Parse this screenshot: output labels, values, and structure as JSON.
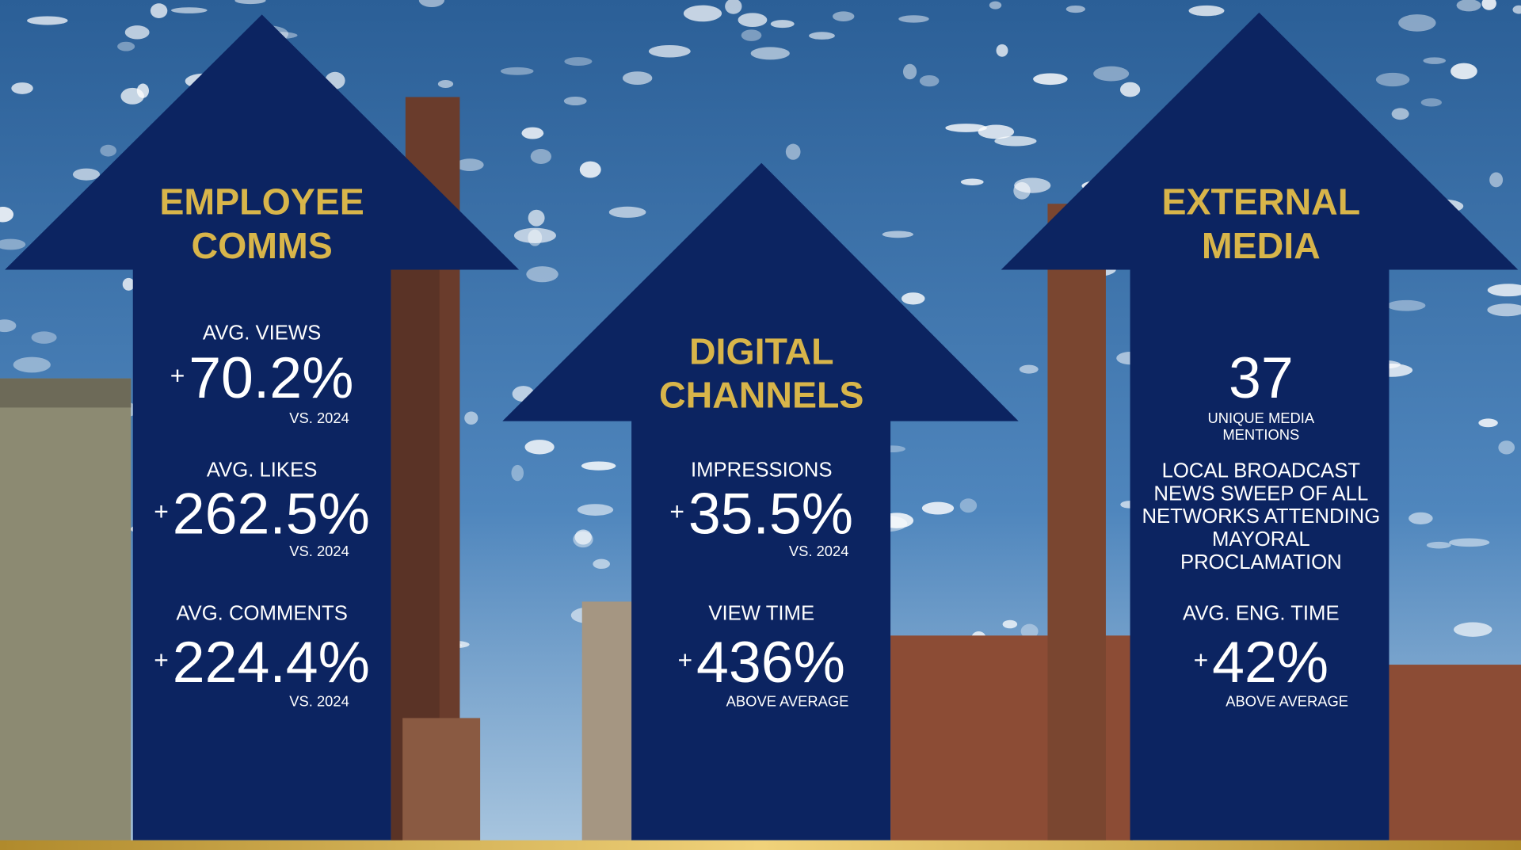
{
  "panels": [
    {
      "title": [
        "EMPLOYEE",
        "COMMS"
      ],
      "metrics": [
        {
          "label": "AVG. VIEWS",
          "sign": "+",
          "value": "70.2%",
          "note": "VS. 2024"
        },
        {
          "label": "AVG. LIKES",
          "sign": "+",
          "value": "262.5%",
          "note": "VS. 2024"
        },
        {
          "label": "AVG. COMMENTS",
          "sign": "+",
          "value": "224.4%",
          "note": "VS. 2024"
        }
      ]
    },
    {
      "title": [
        "DIGITAL",
        "CHANNELS"
      ],
      "metrics": [
        {
          "label": "IMPRESSIONS",
          "sign": "+",
          "value": "35.5%",
          "note": "VS. 2024"
        },
        {
          "label": "VIEW TIME",
          "sign": "+",
          "value": "436%",
          "note": "ABOVE AVERAGE"
        }
      ]
    },
    {
      "title": [
        "EXTERNAL",
        "MEDIA"
      ],
      "highlight": {
        "value": "37",
        "caption": [
          "UNIQUE MEDIA",
          "MENTIONS"
        ]
      },
      "text": [
        "LOCAL BROADCAST",
        "NEWS SWEEP OF ALL",
        "NETWORKS ATTENDING",
        "MAYORAL",
        "PROCLAMATION"
      ],
      "metrics": [
        {
          "label": "AVG. ENG. TIME",
          "sign": "+",
          "value": "42%",
          "note": "ABOVE AVERAGE"
        }
      ]
    }
  ]
}
